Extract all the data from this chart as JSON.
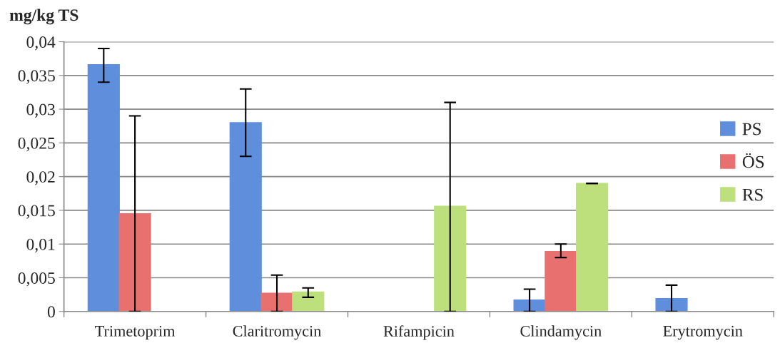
{
  "chart_data": {
    "type": "bar",
    "ylabel": "mg/kg TS",
    "categories": [
      "Trimetoprim",
      "Claritromycin",
      "Rifampicin",
      "Clindamycin",
      "Erytromycin"
    ],
    "series": [
      {
        "name": "PS",
        "color": "#5f8fdc",
        "values": [
          0.0366,
          0.028,
          0,
          0.0017,
          0.0019
        ],
        "errors": [
          [
            0.034,
            0.039
          ],
          [
            0.023,
            0.033
          ],
          null,
          [
            0,
            0.0033
          ],
          [
            0,
            0.0039
          ]
        ]
      },
      {
        "name": "ÖS",
        "color": "#e8716f",
        "values": [
          0.0145,
          0.0027,
          0,
          0.0089,
          0
        ],
        "errors": [
          [
            0,
            0.029
          ],
          [
            0,
            0.0054
          ],
          null,
          [
            0.008,
            0.01
          ],
          null
        ]
      },
      {
        "name": "RS",
        "color": "#bde07c",
        "values": [
          0,
          0.0029,
          0.0156,
          0.019,
          0
        ],
        "errors": [
          null,
          [
            0.0021,
            0.0035
          ],
          [
            0,
            0.031
          ],
          [
            0.019,
            0.019
          ],
          null
        ]
      }
    ],
    "ylim": [
      0,
      0.04
    ],
    "yticks": [
      {
        "value": 0,
        "label": "0"
      },
      {
        "value": 0.005,
        "label": "0,005"
      },
      {
        "value": 0.01,
        "label": "0,01"
      },
      {
        "value": 0.015,
        "label": "0,015"
      },
      {
        "value": 0.02,
        "label": "0,02"
      },
      {
        "value": 0.025,
        "label": "0,025"
      },
      {
        "value": 0.03,
        "label": "0,03"
      },
      {
        "value": 0.035,
        "label": "0,035"
      },
      {
        "value": 0.04,
        "label": "0,04"
      }
    ],
    "grid": "y",
    "legend": "right"
  }
}
